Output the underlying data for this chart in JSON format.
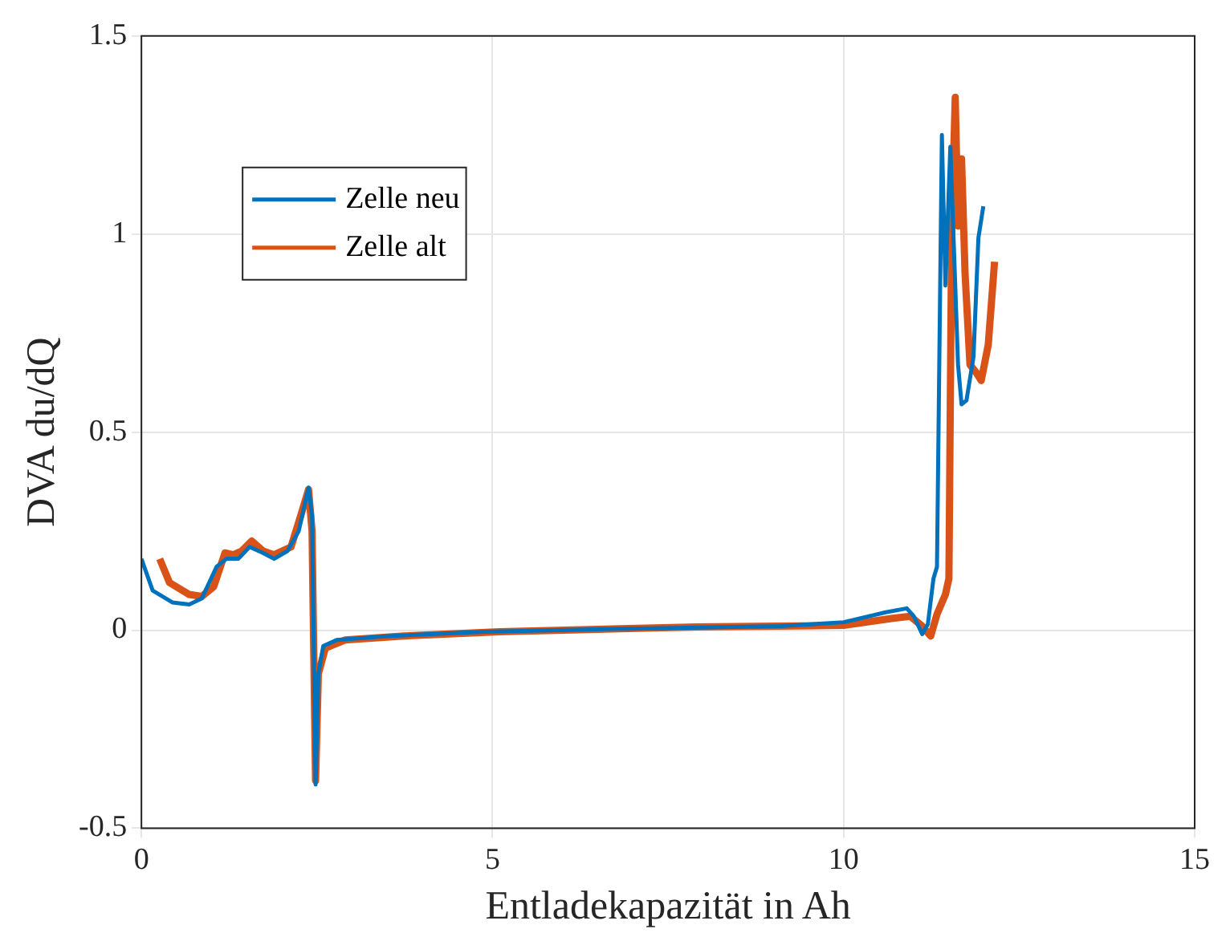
{
  "chart_data": {
    "type": "line",
    "xlabel": "Entladekapazität in Ah",
    "ylabel": "DVA du/dQ",
    "xlim": [
      0,
      15
    ],
    "xticks": [
      0,
      5,
      10,
      15
    ],
    "ylim": [
      -0.5,
      1.5
    ],
    "yticks": [
      {
        "value": -0.5,
        "label": "-0.5"
      },
      0,
      0.5,
      1,
      1.5
    ],
    "grid": true,
    "legend": "top left",
    "marker": "none",
    "line_style": "solid",
    "series": [
      {
        "name": "Zelle neu",
        "color": "#0072bd",
        "x": [
          0,
          0.16,
          0.44,
          0.68,
          0.86,
          1.07,
          1.21,
          1.38,
          1.54,
          1.73,
          1.89,
          2.08,
          2.24,
          2.38,
          2.43,
          2.48,
          2.52,
          2.59,
          2.78,
          3.5,
          4.9,
          6.75,
          9.1,
          10,
          10.6,
          10.9,
          11.0,
          11.12,
          11.2,
          11.28,
          11.33,
          11.4,
          11.45,
          11.52,
          11.56,
          11.63,
          11.68,
          11.75,
          11.85,
          11.92,
          11.99
        ],
        "values": [
          0.18,
          0.1,
          0.07,
          0.065,
          0.08,
          0.16,
          0.18,
          0.18,
          0.21,
          0.195,
          0.18,
          0.2,
          0.25,
          0.36,
          0.29,
          -0.39,
          -0.11,
          -0.04,
          -0.025,
          -0.015,
          -0.004,
          0.003,
          0.01,
          0.02,
          0.045,
          0.055,
          0.035,
          -0.01,
          0.015,
          0.13,
          0.16,
          1.25,
          0.87,
          1.22,
          1.02,
          0.67,
          0.57,
          0.58,
          0.69,
          0.99,
          1.07
        ]
      },
      {
        "name": "Zelle alt",
        "color": "#d95319",
        "x": [
          0.26,
          0.4,
          0.68,
          0.86,
          1.03,
          1.19,
          1.31,
          1.43,
          1.57,
          1.73,
          1.89,
          2.13,
          2.27,
          2.38,
          2.43,
          2.48,
          2.52,
          2.62,
          2.9,
          3.7,
          5.1,
          7.9,
          10,
          10.7,
          10.95,
          11.12,
          11.24,
          11.33,
          11.45,
          11.5,
          11.54,
          11.59,
          11.63,
          11.68,
          11.73,
          11.8,
          11.89,
          11.96,
          12.06,
          12.15
        ],
        "values": [
          0.18,
          0.12,
          0.09,
          0.085,
          0.11,
          0.195,
          0.19,
          0.2,
          0.225,
          0.2,
          0.19,
          0.21,
          0.29,
          0.355,
          0.25,
          -0.38,
          -0.11,
          -0.045,
          -0.025,
          -0.015,
          -0.004,
          0.008,
          0.012,
          0.03,
          0.035,
          0.01,
          -0.015,
          0.04,
          0.09,
          0.13,
          1.02,
          1.345,
          1.02,
          1.19,
          0.9,
          0.67,
          0.65,
          0.63,
          0.72,
          0.93
        ]
      }
    ]
  }
}
